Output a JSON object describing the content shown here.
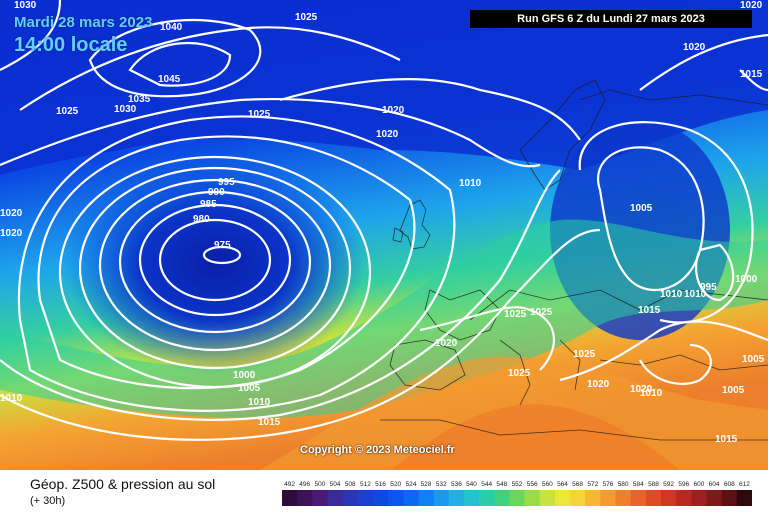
{
  "header": {
    "date": "Mardi 28 mars 2023",
    "time": "14:00 locale",
    "run": "Run GFS 6 Z du Lundi 27 mars 2023"
  },
  "copyright": "Copyright © 2023 Meteociel.fr",
  "footer": {
    "title": "Géop. Z500 & pression au sol",
    "subtitle": "(+ 30h)"
  },
  "legend": {
    "labels": [
      "492",
      "496",
      "500",
      "504",
      "508",
      "512",
      "516",
      "520",
      "524",
      "528",
      "532",
      "536",
      "540",
      "544",
      "548",
      "552",
      "556",
      "560",
      "564",
      "568",
      "572",
      "576",
      "580",
      "584",
      "588",
      "592",
      "596",
      "600",
      "604",
      "608",
      "612"
    ],
    "colors": [
      "#2b0f3a",
      "#3d1257",
      "#4a1a78",
      "#3b2a9a",
      "#2a34b8",
      "#1d3fd1",
      "#0f4ae0",
      "#0a56ee",
      "#0a6af2",
      "#0f82f2",
      "#1a98ef",
      "#22aee6",
      "#25c1cf",
      "#2bcda8",
      "#3ed27e",
      "#6ad65a",
      "#9bdc46",
      "#c8e23e",
      "#ece83a",
      "#f7d33a",
      "#f8b733",
      "#f59b2f",
      "#ef7f2b",
      "#e86428",
      "#de4b26",
      "#cf3624",
      "#b82722",
      "#9f1f20",
      "#7f181b",
      "#5a1015",
      "#2e090c"
    ]
  },
  "pressure_labels": [
    "1030",
    "1040",
    "1025",
    "1020",
    "1045",
    "1035",
    "1030",
    "1025",
    "1025",
    "1020",
    "1020",
    "1020",
    "1015",
    "1020",
    "1010",
    "995",
    "990",
    "985",
    "980",
    "975",
    "1005",
    "1010",
    "1010",
    "995",
    "1000",
    "1015",
    "1025",
    "1025",
    "1020",
    "1025",
    "1025",
    "1020",
    "1005",
    "1000",
    "1005",
    "1010",
    "1015",
    "1010",
    "1005",
    "1015",
    "1020",
    "1020",
    "1010"
  ],
  "colors": {
    "deep_low": "#0a2ac0",
    "ocean": "#0b3fd8",
    "contour": "#ffffff"
  }
}
